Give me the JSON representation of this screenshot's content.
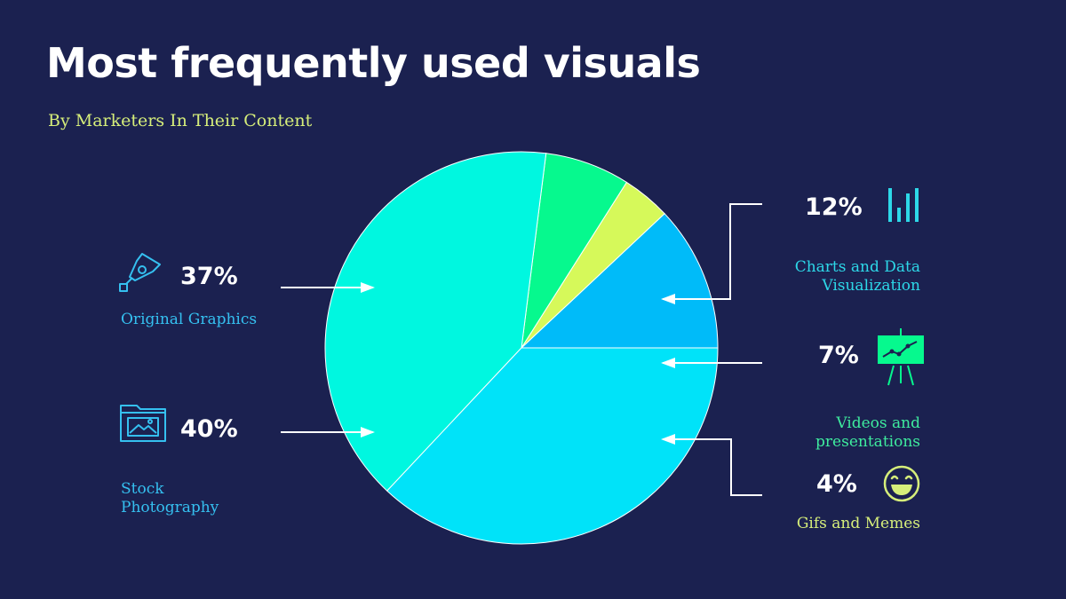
{
  "title": "Most frequently used visuals",
  "subtitle": "By Marketers In Their Content",
  "colors": {
    "background": "#1b2150",
    "title": "#ffffff",
    "subtitle": "#d6ee7a",
    "arrow": "#ffffff"
  },
  "chart_data": {
    "type": "pie",
    "title": "Most frequently used visuals",
    "subtitle": "By Marketers In Their Content",
    "slices": [
      {
        "label": "Charts and Data Visualization",
        "value": 12,
        "value_label": "12%",
        "color": "#00bbf9",
        "label_color": "#2dd8e8",
        "icon": "bar-chart-icon"
      },
      {
        "label": "Original Graphics",
        "value": 37,
        "value_label": "37%",
        "color": "#00e3f9",
        "label_color": "#35c0f0",
        "icon": "pen-tool-icon"
      },
      {
        "label": "Stock Photography",
        "value": 40,
        "value_label": "40%",
        "color": "#00f7e0",
        "label_color": "#35c0f0",
        "icon": "image-folder-icon"
      },
      {
        "label": "Videos and presentations",
        "value": 7,
        "value_label": "7%",
        "color": "#06f98e",
        "label_color": "#3eeb9e",
        "icon": "presentation-board-icon"
      },
      {
        "label": "Gifs and Memes",
        "value": 4,
        "value_label": "4%",
        "color": "#d6f95a",
        "label_color": "#d6ee7a",
        "icon": "laughing-face-icon"
      }
    ]
  }
}
